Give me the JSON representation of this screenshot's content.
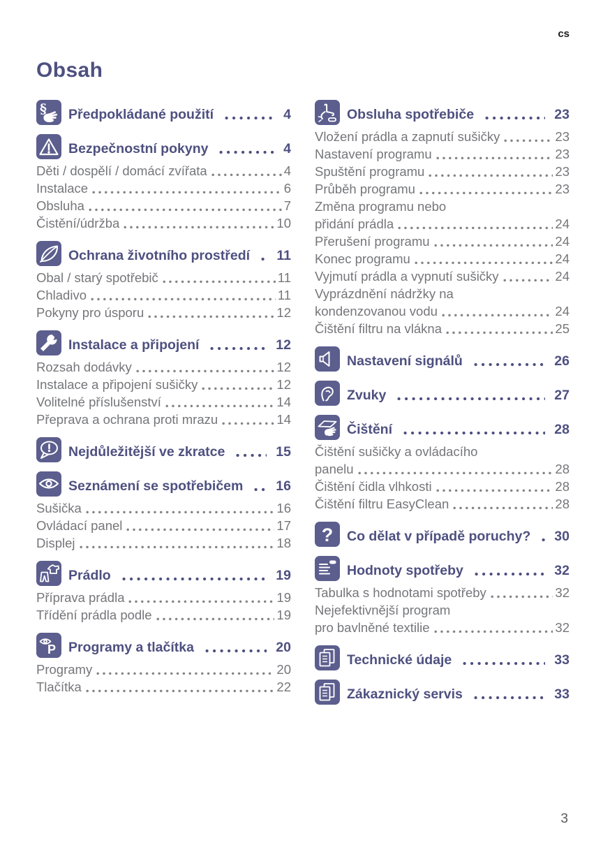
{
  "page": {
    "lang_marker": "cs",
    "title": "Obsah",
    "page_number": "3",
    "accent_color": "#5c5e8e",
    "heading_color": "#4e5080",
    "body_color": "#75767a"
  },
  "columns": [
    {
      "sections": [
        {
          "icon": "section-sign-hand-icon",
          "title": "Předpokládané použití",
          "page": "4",
          "entries": []
        },
        {
          "icon": "warning-triangle-icon",
          "title": "Bezpečnostní pokyny",
          "page": "4",
          "entries": [
            {
              "lines": [
                "Děti / dospělí / domácí zvířata"
              ],
              "page": "4"
            },
            {
              "lines": [
                "Instalace"
              ],
              "page": "6"
            },
            {
              "lines": [
                "Obsluha"
              ],
              "page": "7"
            },
            {
              "lines": [
                "Čistění/údržba"
              ],
              "page": "10"
            }
          ]
        },
        {
          "icon": "leaf-icon",
          "title": "Ochrana životního prostředí",
          "page": "11",
          "entries": [
            {
              "lines": [
                "Obal / starý spotřebič"
              ],
              "page": "11"
            },
            {
              "lines": [
                "Chladivo"
              ],
              "page": "11"
            },
            {
              "lines": [
                "Pokyny pro úsporu"
              ],
              "page": "12"
            }
          ]
        },
        {
          "icon": "wrench-icon",
          "title": "Instalace a připojení",
          "page": "12",
          "entries": [
            {
              "lines": [
                "Rozsah dodávky"
              ],
              "page": "12"
            },
            {
              "lines": [
                "Instalace a připojení sušičky"
              ],
              "page": "12"
            },
            {
              "lines": [
                "Volitelné příslušenství"
              ],
              "page": "14"
            },
            {
              "lines": [
                "Přeprava a ochrana proti mrazu"
              ],
              "page": "14"
            }
          ]
        },
        {
          "icon": "speech-bubble-exclamation-icon",
          "title": "Nejdůležitější ve zkratce",
          "page": "15",
          "entries": []
        },
        {
          "icon": "eye-icon",
          "title": "Seznámení se spotřebičem",
          "page": "16",
          "entries": [
            {
              "lines": [
                "Sušička"
              ],
              "page": "16"
            },
            {
              "lines": [
                "Ovládací panel"
              ],
              "page": "17"
            },
            {
              "lines": [
                "Displej"
              ],
              "page": "18"
            }
          ]
        },
        {
          "icon": "laundry-garments-icon",
          "title": "Prádlo",
          "page": "19",
          "entries": [
            {
              "lines": [
                "Příprava prádla"
              ],
              "page": "19"
            },
            {
              "lines": [
                "Třídění prádla podle"
              ],
              "page": "19"
            }
          ]
        },
        {
          "icon": "eye-letter-p-icon",
          "title": "Programy a tlačítka",
          "page": "20",
          "entries": [
            {
              "lines": [
                "Programy"
              ],
              "page": "20"
            },
            {
              "lines": [
                "Tlačítka"
              ],
              "page": "22"
            }
          ]
        }
      ]
    },
    {
      "sections": [
        {
          "icon": "hand-press-button-icon",
          "title": "Obsluha spotřebiče",
          "page": "23",
          "entries": [
            {
              "lines": [
                "Vložení prádla a zapnutí sušičky"
              ],
              "page": "23"
            },
            {
              "lines": [
                "Nastavení programu"
              ],
              "page": "23"
            },
            {
              "lines": [
                "Spuštění programu"
              ],
              "page": "23"
            },
            {
              "lines": [
                "Průběh programu"
              ],
              "page": "23"
            },
            {
              "lines": [
                "Změna programu nebo",
                "přidání prádla"
              ],
              "page": "24"
            },
            {
              "lines": [
                "Přerušení programu"
              ],
              "page": "24"
            },
            {
              "lines": [
                "Konec programu"
              ],
              "page": "24"
            },
            {
              "lines": [
                "Vyjmutí prádla a vypnutí sušičky"
              ],
              "page": "24"
            },
            {
              "lines": [
                "Vyprázdnění nádržky na",
                "kondenzovanou vodu"
              ],
              "page": "24"
            },
            {
              "lines": [
                "Čištění filtru na vlákna"
              ],
              "page": "25"
            }
          ]
        },
        {
          "icon": "speaker-icon",
          "title": "Nastavení signálů",
          "page": "26",
          "entries": []
        },
        {
          "icon": "ear-icon",
          "title": "Zvuky",
          "page": "27",
          "entries": []
        },
        {
          "icon": "cleaning-cloth-hand-icon",
          "title": "Čištění",
          "page": "28",
          "entries": [
            {
              "lines": [
                "Čištění sušičky a ovládacího",
                "panelu"
              ],
              "page": "28"
            },
            {
              "lines": [
                "Čištění čidla vlhkosti"
              ],
              "page": "28"
            },
            {
              "lines": [
                "Čištění filtru EasyClean"
              ],
              "page": "28"
            }
          ]
        },
        {
          "icon": "question-mark-icon",
          "title": "Co dělat v případě poruchy?",
          "page": "30",
          "entries": []
        },
        {
          "icon": "consumption-list-icon",
          "title": "Hodnoty spotřeby",
          "page": "32",
          "entries": [
            {
              "lines": [
                "Tabulka s hodnotami spotřeby"
              ],
              "page": "32"
            },
            {
              "lines": [
                "Nejefektivnější program",
                "pro bavlněné textilie"
              ],
              "page": "32"
            }
          ]
        },
        {
          "icon": "document-pages-icon",
          "title": "Technické údaje",
          "page": "33",
          "entries": []
        },
        {
          "icon": "document-pages-icon",
          "title": "Zákaznický servis",
          "page": "33",
          "entries": []
        }
      ]
    }
  ]
}
